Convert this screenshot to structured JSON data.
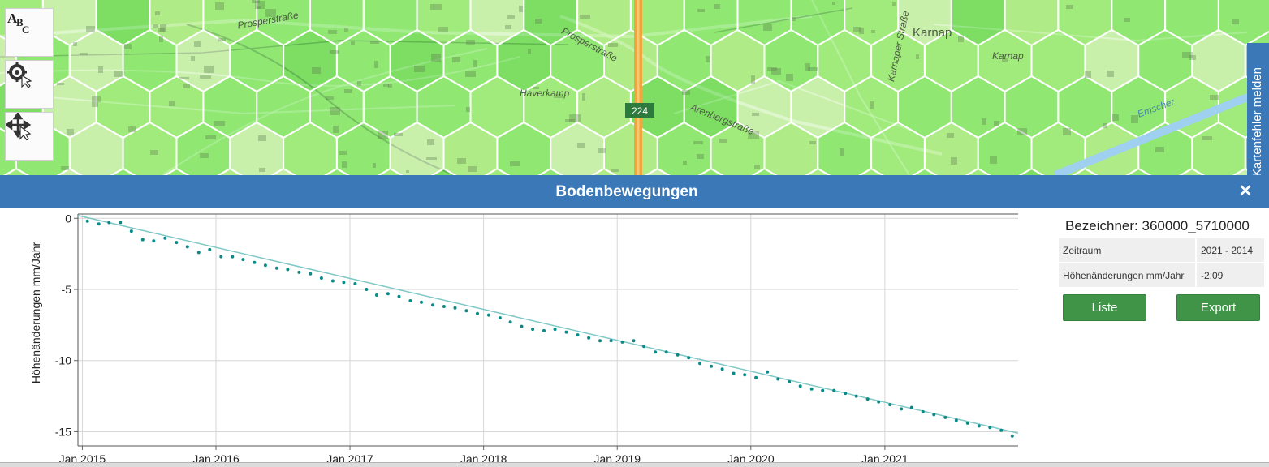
{
  "map": {
    "labels": [
      "Prosperstraße",
      "Prosperstraße",
      "Haverkamp",
      "Arenbergstraße",
      "Karnap",
      "Karnap",
      "Karnaper Straße",
      "224",
      "Emscher"
    ],
    "tools": [
      {
        "name": "label-tool",
        "icon": "abc-icon"
      },
      {
        "name": "settings-tool",
        "icon": "gear-cursor-icon"
      },
      {
        "name": "pan-tool",
        "icon": "move-cursor-icon"
      }
    ],
    "report_tab": "Kartenfehler melden",
    "colors": {
      "hex_light": "#9fec7e",
      "hex_mid": "#7fe66a",
      "hex_dark": "#5fd64e",
      "hex_border": "#ffffff",
      "motorway": "#f2a53a"
    }
  },
  "panel": {
    "title": "Bodenbewegungen",
    "close_symbol": "✕",
    "header_color": "#3a78b8"
  },
  "info": {
    "identifier_label": "Bezeichner: 360000_5710000",
    "rows": [
      {
        "label": "Zeitraum",
        "value": "2021 - 2014"
      },
      {
        "label": "Höhenänderungen mm/Jahr",
        "value": "-2.09"
      }
    ],
    "buttons": {
      "list": "Liste",
      "export": "Export"
    },
    "button_color": "#3f9447"
  },
  "chart_data": {
    "type": "scatter",
    "title": "",
    "xlabel": "",
    "ylabel": "Höhenänderungen mm/Jahr",
    "x_ticks": [
      "Jan 2015",
      "Jan 2016",
      "Jan 2017",
      "Jan 2018",
      "Jan 2019",
      "Jan 2020",
      "Jan 2021"
    ],
    "y_ticks": [
      0,
      -5,
      -10,
      -15
    ],
    "xlim": [
      "2014-12-20",
      "2021-12-31"
    ],
    "ylim": [
      -16,
      0.3
    ],
    "grid": true,
    "point_color": "#0a8a87",
    "trend_color": "#7fc8c6",
    "series": [
      {
        "name": "",
        "x": [
          "2015-01",
          "2015-02",
          "2015-03",
          "2015-04",
          "2015-05",
          "2015-06",
          "2015-07",
          "2015-08",
          "2015-09",
          "2015-10",
          "2015-11",
          "2015-12",
          "2016-01",
          "2016-02",
          "2016-03",
          "2016-04",
          "2016-05",
          "2016-06",
          "2016-07",
          "2016-08",
          "2016-09",
          "2016-10",
          "2016-11",
          "2016-12",
          "2017-01",
          "2017-02",
          "2017-03",
          "2017-04",
          "2017-05",
          "2017-06",
          "2017-07",
          "2017-08",
          "2017-09",
          "2017-10",
          "2017-11",
          "2017-12",
          "2018-01",
          "2018-02",
          "2018-03",
          "2018-04",
          "2018-05",
          "2018-06",
          "2018-07",
          "2018-08",
          "2018-09",
          "2018-10",
          "2018-11",
          "2018-12",
          "2019-01",
          "2019-02",
          "2019-03",
          "2019-04",
          "2019-05",
          "2019-06",
          "2019-07",
          "2019-08",
          "2019-09",
          "2019-10",
          "2019-11",
          "2019-12",
          "2020-01",
          "2020-02",
          "2020-03",
          "2020-04",
          "2020-05",
          "2020-06",
          "2020-07",
          "2020-08",
          "2020-09",
          "2020-10",
          "2020-11",
          "2020-12",
          "2021-01",
          "2021-02",
          "2021-03",
          "2021-04",
          "2021-05",
          "2021-06",
          "2021-07",
          "2021-08",
          "2021-09",
          "2021-10",
          "2021-11",
          "2021-12"
        ],
        "y": [
          -0.2,
          -0.4,
          -0.3,
          -0.3,
          -0.9,
          -1.5,
          -1.6,
          -1.4,
          -1.7,
          -2.0,
          -2.4,
          -2.2,
          -2.7,
          -2.7,
          -2.9,
          -3.1,
          -3.3,
          -3.5,
          -3.6,
          -3.8,
          -3.9,
          -4.2,
          -4.4,
          -4.5,
          -4.6,
          -5.0,
          -5.4,
          -5.3,
          -5.5,
          -5.8,
          -5.9,
          -6.1,
          -6.2,
          -6.3,
          -6.5,
          -6.7,
          -6.8,
          -7.0,
          -7.3,
          -7.6,
          -7.8,
          -7.9,
          -7.8,
          -8.0,
          -8.2,
          -8.4,
          -8.6,
          -8.6,
          -8.7,
          -8.6,
          -9.0,
          -9.4,
          -9.4,
          -9.6,
          -9.8,
          -10.2,
          -10.4,
          -10.6,
          -10.9,
          -11.0,
          -11.2,
          -10.8,
          -11.3,
          -11.5,
          -11.8,
          -12.0,
          -12.1,
          -12.1,
          -12.3,
          -12.5,
          -12.7,
          -12.9,
          -13.1,
          -13.4,
          -13.3,
          -13.6,
          -13.8,
          -14.0,
          -14.2,
          -14.4,
          -14.6,
          -14.7,
          -14.9,
          -15.3
        ]
      }
    ],
    "trend": {
      "x": [
        "2014-12-20",
        "2021-12-31"
      ],
      "y": [
        0.2,
        -15.1
      ]
    }
  }
}
